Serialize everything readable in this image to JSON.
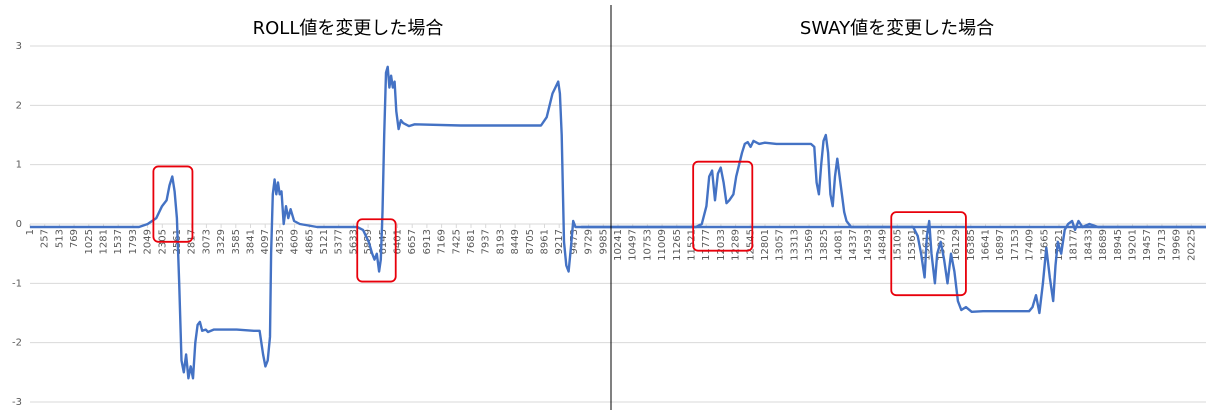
{
  "chart_data": {
    "type": "line",
    "titles": [
      "ROLL値を変更した場合",
      "SWAY値を変更した場合"
    ],
    "ylim": [
      -3,
      3
    ],
    "y_ticks": [
      3,
      2,
      1,
      0,
      -1,
      -2,
      -3
    ],
    "x_range": [
      1,
      20481
    ],
    "x_tick_labels": [
      "1",
      "257",
      "513",
      "769",
      "1025",
      "1281",
      "1537",
      "1793",
      "2049",
      "2305",
      "2561",
      "2817",
      "3073",
      "3329",
      "3585",
      "3841",
      "4097",
      "4353",
      "4609",
      "4865",
      "5121",
      "5377",
      "5633",
      "5889",
      "6145",
      "6401",
      "6657",
      "6913",
      "7169",
      "7425",
      "7681",
      "7937",
      "8193",
      "8449",
      "8705",
      "8961",
      "9217",
      "9473",
      "9729",
      "9985",
      "10241",
      "10497",
      "10753",
      "11009",
      "11265",
      "11521",
      "11777",
      "12033",
      "12289",
      "12545",
      "12801",
      "13057",
      "13313",
      "13569",
      "13825",
      "14081",
      "14337",
      "14593",
      "14849",
      "15105",
      "15361",
      "15617",
      "15873",
      "16129",
      "16385",
      "16641",
      "16897",
      "17153",
      "17409",
      "17665",
      "17921",
      "18177",
      "18433",
      "18689",
      "18945",
      "19201",
      "19457",
      "19713",
      "19969",
      "20225"
    ],
    "grid": true,
    "colors": {
      "series": "#4472C4",
      "grid": "#d9d9d9",
      "highlight": "#e8000b",
      "divider": "#000000"
    },
    "series": [
      {
        "points": [
          [
            1,
            -0.05
          ],
          [
            1900,
            -0.05
          ],
          [
            2050,
            0.0
          ],
          [
            2200,
            0.1
          ],
          [
            2300,
            0.3
          ],
          [
            2380,
            0.4
          ],
          [
            2430,
            0.65
          ],
          [
            2480,
            0.8
          ],
          [
            2520,
            0.55
          ],
          [
            2560,
            0.1
          ],
          [
            2600,
            -1.0
          ],
          [
            2640,
            -2.3
          ],
          [
            2680,
            -2.5
          ],
          [
            2720,
            -2.2
          ],
          [
            2760,
            -2.6
          ],
          [
            2800,
            -2.4
          ],
          [
            2840,
            -2.6
          ],
          [
            2880,
            -2.0
          ],
          [
            2920,
            -1.7
          ],
          [
            2960,
            -1.65
          ],
          [
            3000,
            -1.8
          ],
          [
            3060,
            -1.78
          ],
          [
            3100,
            -1.82
          ],
          [
            3200,
            -1.78
          ],
          [
            3600,
            -1.78
          ],
          [
            3900,
            -1.8
          ],
          [
            4000,
            -1.8
          ],
          [
            4060,
            -2.2
          ],
          [
            4100,
            -2.4
          ],
          [
            4140,
            -2.3
          ],
          [
            4180,
            -1.9
          ],
          [
            4200,
            -0.5
          ],
          [
            4230,
            0.5
          ],
          [
            4260,
            0.75
          ],
          [
            4290,
            0.5
          ],
          [
            4320,
            0.7
          ],
          [
            4350,
            0.5
          ],
          [
            4380,
            0.55
          ],
          [
            4420,
            0.0
          ],
          [
            4460,
            0.3
          ],
          [
            4500,
            0.1
          ],
          [
            4540,
            0.25
          ],
          [
            4600,
            0.05
          ],
          [
            4700,
            0.0
          ],
          [
            5000,
            -0.05
          ],
          [
            5700,
            -0.05
          ],
          [
            5800,
            -0.1
          ],
          [
            5900,
            -0.3
          ],
          [
            5960,
            -0.5
          ],
          [
            6000,
            -0.6
          ],
          [
            6040,
            -0.5
          ],
          [
            6080,
            -0.8
          ],
          [
            6110,
            -0.6
          ],
          [
            6140,
            0.2
          ],
          [
            6170,
            1.5
          ],
          [
            6200,
            2.55
          ],
          [
            6230,
            2.65
          ],
          [
            6260,
            2.3
          ],
          [
            6290,
            2.5
          ],
          [
            6320,
            2.3
          ],
          [
            6350,
            2.4
          ],
          [
            6380,
            1.9
          ],
          [
            6420,
            1.6
          ],
          [
            6460,
            1.75
          ],
          [
            6500,
            1.7
          ],
          [
            6600,
            1.65
          ],
          [
            6700,
            1.68
          ],
          [
            7500,
            1.66
          ],
          [
            8900,
            1.66
          ],
          [
            9000,
            1.8
          ],
          [
            9050,
            2.0
          ],
          [
            9100,
            2.2
          ],
          [
            9150,
            2.3
          ],
          [
            9200,
            2.4
          ],
          [
            9230,
            2.2
          ],
          [
            9260,
            1.5
          ],
          [
            9300,
            -0.3
          ],
          [
            9340,
            -0.7
          ],
          [
            9380,
            -0.8
          ],
          [
            9420,
            -0.4
          ],
          [
            9460,
            0.05
          ],
          [
            9500,
            -0.05
          ],
          [
            9600,
            -0.05
          ],
          [
            20481,
            -0.05
          ]
        ]
      },
      {
        "points": [
          [
            9600,
            -0.05
          ],
          [
            11600,
            -0.05
          ],
          [
            11700,
            0.0
          ],
          [
            11780,
            0.3
          ],
          [
            11830,
            0.8
          ],
          [
            11880,
            0.9
          ],
          [
            11930,
            0.4
          ],
          [
            11980,
            0.85
          ],
          [
            12030,
            0.95
          ],
          [
            12080,
            0.7
          ],
          [
            12130,
            0.35
          ],
          [
            12180,
            0.4
          ],
          [
            12250,
            0.5
          ],
          [
            12300,
            0.8
          ],
          [
            12350,
            1.0
          ],
          [
            12400,
            1.2
          ],
          [
            12450,
            1.35
          ],
          [
            12500,
            1.38
          ],
          [
            12550,
            1.3
          ],
          [
            12600,
            1.4
          ],
          [
            12700,
            1.35
          ],
          [
            12800,
            1.37
          ],
          [
            13000,
            1.35
          ],
          [
            13600,
            1.35
          ],
          [
            13660,
            1.3
          ],
          [
            13700,
            0.7
          ],
          [
            13740,
            0.5
          ],
          [
            13780,
            1.0
          ],
          [
            13820,
            1.4
          ],
          [
            13860,
            1.5
          ],
          [
            13900,
            1.2
          ],
          [
            13940,
            0.5
          ],
          [
            13980,
            0.3
          ],
          [
            14020,
            0.8
          ],
          [
            14060,
            1.1
          ],
          [
            14100,
            0.8
          ],
          [
            14140,
            0.5
          ],
          [
            14180,
            0.2
          ],
          [
            14220,
            0.05
          ],
          [
            14300,
            -0.05
          ],
          [
            14500,
            -0.05
          ],
          [
            15380,
            -0.05
          ],
          [
            15460,
            -0.2
          ],
          [
            15520,
            -0.5
          ],
          [
            15580,
            -0.9
          ],
          [
            15620,
            -0.2
          ],
          [
            15660,
            0.05
          ],
          [
            15700,
            -0.5
          ],
          [
            15760,
            -1.0
          ],
          [
            15800,
            -0.5
          ],
          [
            15860,
            -0.3
          ],
          [
            15920,
            -0.6
          ],
          [
            15980,
            -1.0
          ],
          [
            16040,
            -0.5
          ],
          [
            16100,
            -0.8
          ],
          [
            16160,
            -1.3
          ],
          [
            16220,
            -1.45
          ],
          [
            16300,
            -1.4
          ],
          [
            16400,
            -1.48
          ],
          [
            16600,
            -1.47
          ],
          [
            17400,
            -1.47
          ],
          [
            17460,
            -1.4
          ],
          [
            17520,
            -1.2
          ],
          [
            17580,
            -1.5
          ],
          [
            17640,
            -1.0
          ],
          [
            17700,
            -0.4
          ],
          [
            17760,
            -0.9
          ],
          [
            17820,
            -1.3
          ],
          [
            17860,
            -0.7
          ],
          [
            17900,
            -0.3
          ],
          [
            17960,
            -0.5
          ],
          [
            18020,
            -0.1
          ],
          [
            18080,
            0.0
          ],
          [
            18150,
            0.05
          ],
          [
            18200,
            -0.1
          ],
          [
            18260,
            0.05
          ],
          [
            18330,
            -0.05
          ],
          [
            18450,
            0.0
          ],
          [
            18600,
            -0.05
          ],
          [
            20481,
            -0.05
          ]
        ]
      }
    ]
  }
}
